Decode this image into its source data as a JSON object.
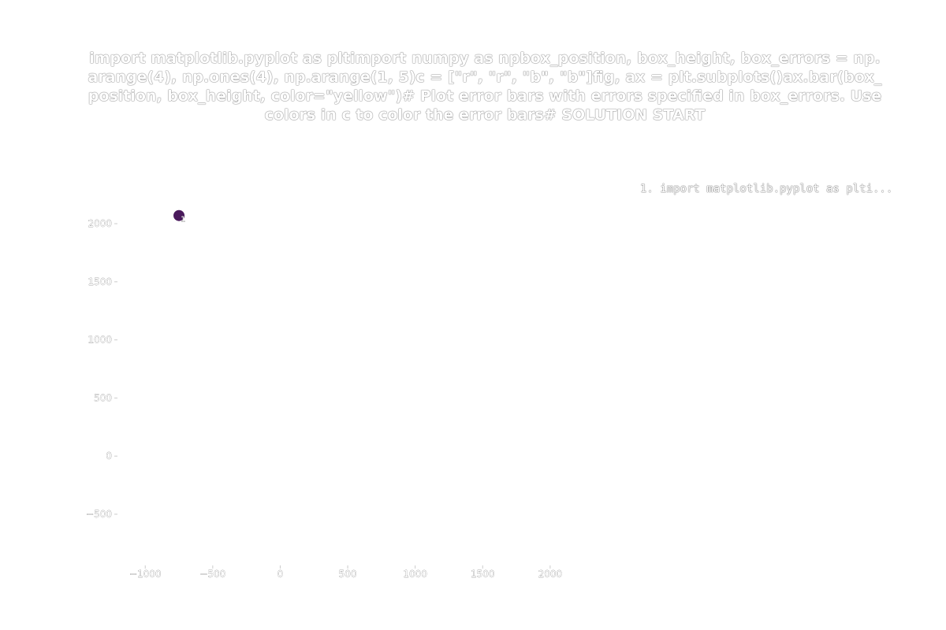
{
  "chart_data": {
    "type": "scatter",
    "title": "import matplotlib.pyplot as pltimport numpy as npbox_position, box_height, box_errors = np.arange(4), np.ones(4), np.arange(1, 5)c = [\"r\", \"r\", \"b\", \"b\"]fig, ax = plt.subplots()ax.bar(box_position, box_height, color=\"yellow\")# Plot error bars with errors specified in box_errors. Use colors in c to color the error bars# SOLUTION START",
    "legend_text": "1. import matplotlib.pyplot as plti...",
    "xlim": [
      -1200,
      2100
    ],
    "ylim": [
      -900,
      2400
    ],
    "x_ticks": [
      -1000,
      -500,
      0,
      500,
      1000,
      1500,
      2000
    ],
    "x_tick_labels": [
      "−1000",
      "−500",
      "0",
      "500",
      "1000",
      "1500",
      "2000"
    ],
    "y_ticks": [
      -500,
      0,
      500,
      1000,
      1500,
      2000
    ],
    "y_tick_labels": [
      "−500",
      "0",
      "500",
      "1000",
      "1500",
      "2000"
    ],
    "points": [
      {
        "x": -750,
        "y": 2070,
        "label": "1",
        "color": "#4a1a5c"
      }
    ],
    "grid": false
  }
}
